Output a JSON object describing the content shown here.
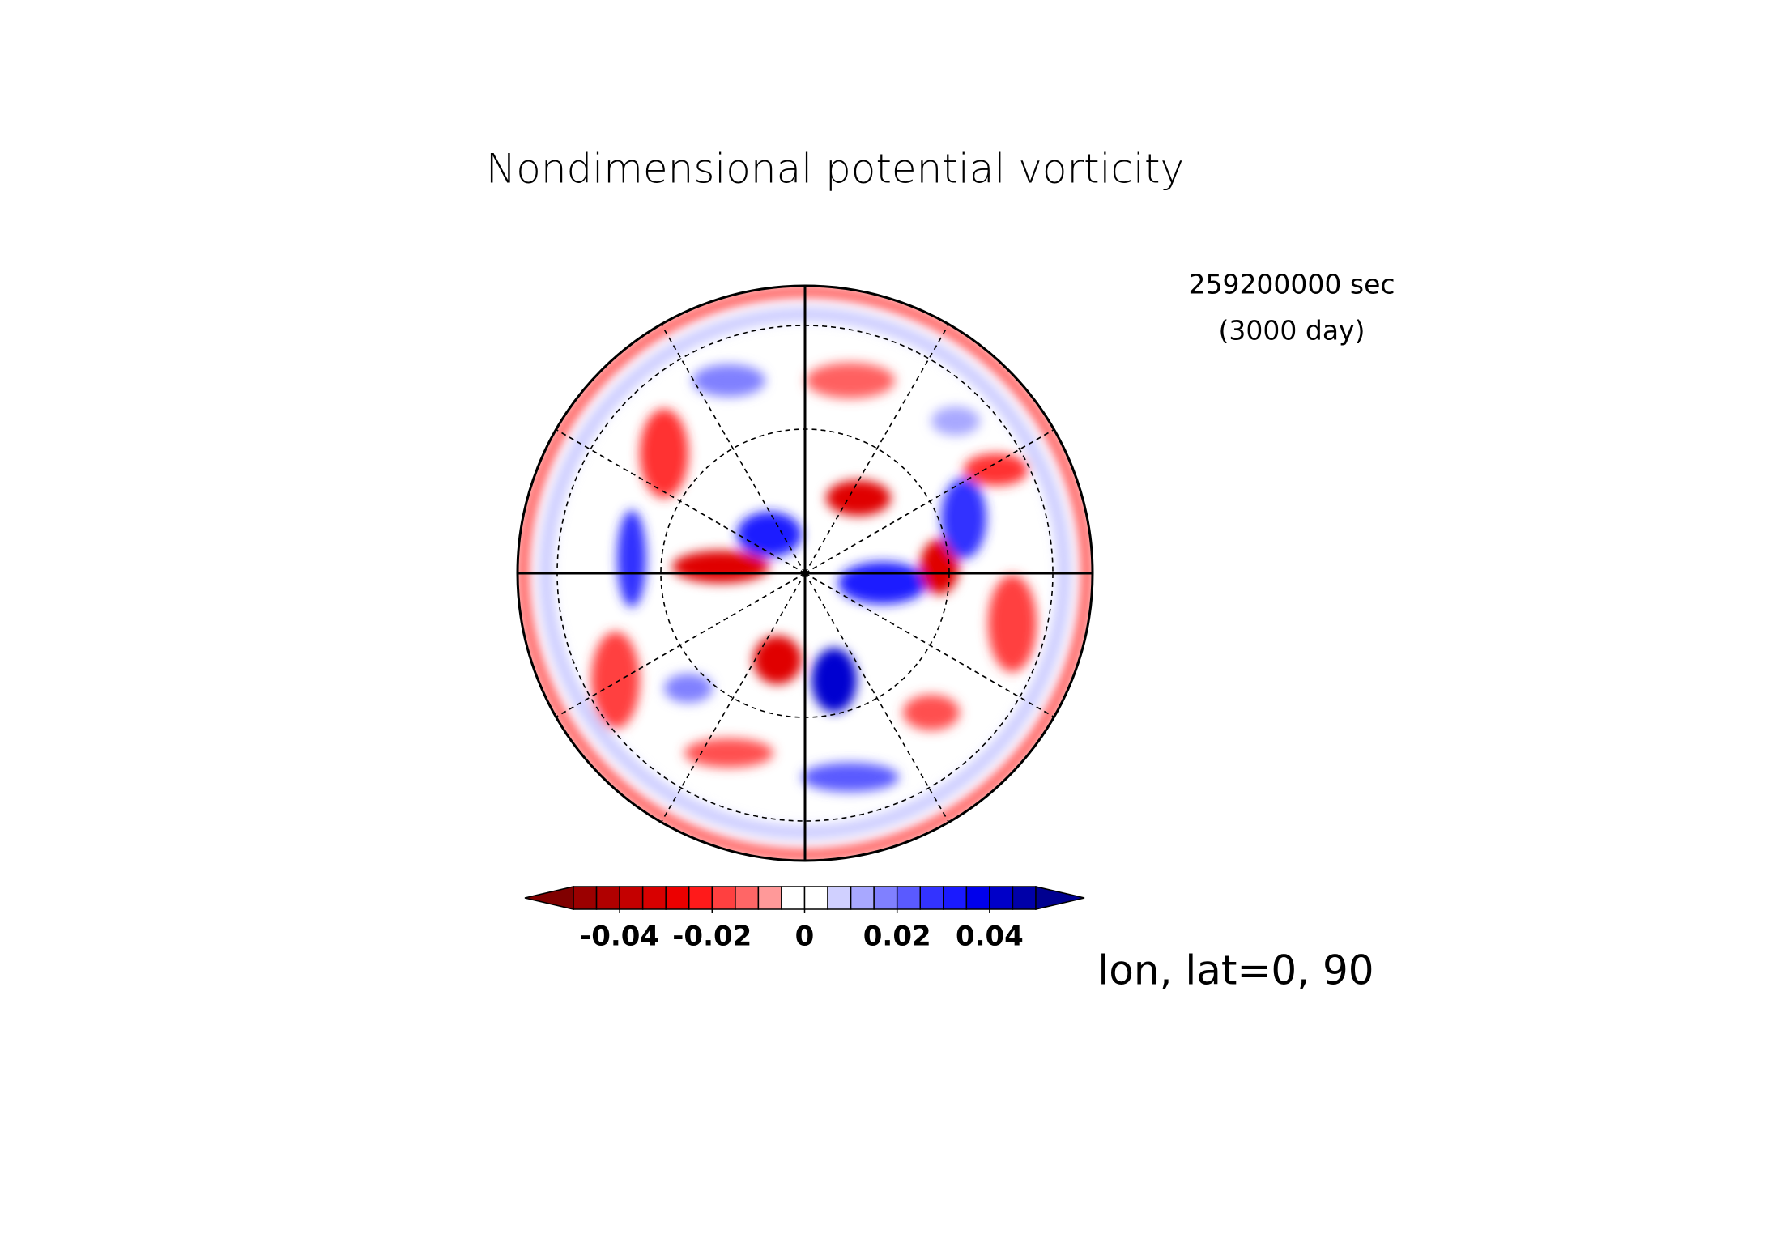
{
  "chart_data": {
    "type": "contour",
    "title": "Nondimensional potential vorticity",
    "annotations": [
      "259200000 sec",
      "(3000 day)",
      "lon, lat=0, 90"
    ],
    "colorbar": {
      "levels": [
        -0.05,
        -0.045,
        -0.04,
        -0.035,
        -0.03,
        -0.025,
        -0.02,
        -0.015,
        -0.01,
        -0.005,
        0,
        0.005,
        0.01,
        0.015,
        0.02,
        0.025,
        0.03,
        0.035,
        0.04,
        0.045,
        0.05
      ],
      "colors": [
        "#800000",
        "#9b0000",
        "#b00000",
        "#c40000",
        "#d80000",
        "#ec0000",
        "#ff1a1a",
        "#ff4040",
        "#ff6666",
        "#ff9999",
        "#ffffff",
        "#ffffff",
        "#d0d0ff",
        "#a8a8ff",
        "#8080ff",
        "#5a5aff",
        "#3333ff",
        "#1a1aff",
        "#0000ec",
        "#0000c8",
        "#0000a8",
        "#000090"
      ],
      "ticks": [
        -0.04,
        -0.02,
        0,
        0.02,
        0.04
      ]
    }
  }
}
